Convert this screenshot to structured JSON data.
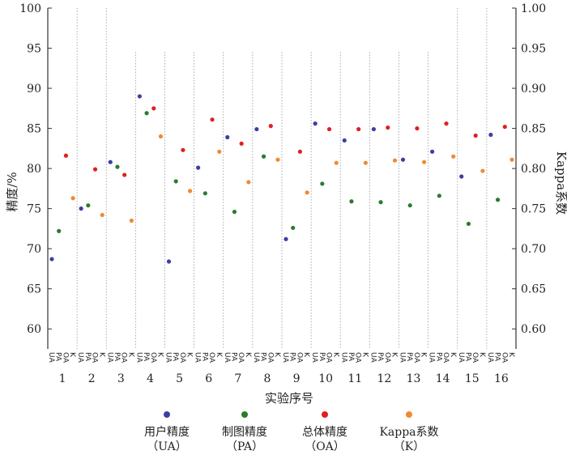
{
  "chart_data": {
    "type": "scatter",
    "xlabel": "实验序号",
    "ylabel": "精度/%",
    "y2label": "Kappa系数",
    "ylim": [
      57.5,
      100
    ],
    "y2lim": [
      0.575,
      1.0
    ],
    "y_ticks": [
      "60",
      "65",
      "70",
      "75",
      "80",
      "85",
      "90",
      "95",
      "100"
    ],
    "y2_ticks": [
      "0.60",
      "0.65",
      "0.70",
      "0.75",
      "0.80",
      "0.85",
      "0.90",
      "0.95",
      "1.00"
    ],
    "categories": [
      "1",
      "2",
      "3",
      "4",
      "5",
      "6",
      "7",
      "8",
      "9",
      "10",
      "11",
      "12",
      "13",
      "14",
      "15",
      "16"
    ],
    "sub_labels": [
      "UA",
      "PA",
      "OA",
      "K"
    ],
    "grid": "vertical dotted separators between experiments",
    "legend_position": "bottom",
    "series": [
      {
        "name": "用户精度（UA）",
        "axis": "left",
        "color": "#3b3fa0",
        "values": [
          68.7,
          75.0,
          80.8,
          89.0,
          68.4,
          80.1,
          83.9,
          84.9,
          71.2,
          85.6,
          83.5,
          84.9,
          81.1,
          82.1,
          79.0,
          84.2
        ]
      },
      {
        "name": "制图精度（PA）",
        "axis": "left",
        "color": "#2e7a2e",
        "values": [
          72.2,
          75.4,
          80.2,
          86.9,
          78.4,
          76.9,
          74.6,
          81.5,
          72.6,
          78.1,
          75.9,
          75.8,
          75.4,
          76.6,
          73.1,
          76.1
        ]
      },
      {
        "name": "总体精度（OA）",
        "axis": "left",
        "color": "#e02020",
        "values": [
          81.6,
          79.9,
          79.2,
          87.5,
          82.3,
          86.1,
          83.1,
          85.3,
          82.1,
          84.9,
          84.9,
          85.1,
          85.0,
          85.6,
          84.1,
          85.2
        ]
      },
      {
        "name": "Kappa系数（K）",
        "axis": "right",
        "color": "#f08a30",
        "values": [
          0.763,
          0.742,
          0.735,
          0.84,
          0.772,
          0.821,
          0.783,
          0.811,
          0.77,
          0.807,
          0.807,
          0.81,
          0.808,
          0.815,
          0.797,
          0.811
        ]
      }
    ]
  },
  "legend": [
    {
      "line1": "用户精度",
      "line2": "（UA）",
      "color": "#3b3fa0"
    },
    {
      "line1": "制图精度",
      "line2": "（PA）",
      "color": "#2e7a2e"
    },
    {
      "line1": "总体精度",
      "line2": "（OA）",
      "color": "#e02020"
    },
    {
      "line1": "Kappa系数",
      "line2": "（K）",
      "color": "#f08a30"
    }
  ]
}
